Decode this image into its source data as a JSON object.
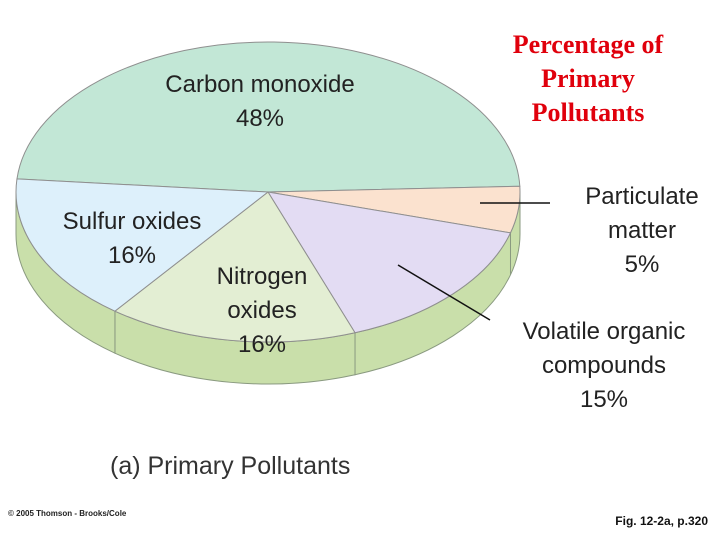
{
  "chart_data": {
    "type": "pie",
    "title": "Percentage of Primary Pollutants",
    "categories": [
      "Carbon monoxide",
      "Particulate matter",
      "Volatile organic compounds",
      "Nitrogen oxides",
      "Sulfur oxides"
    ],
    "values": [
      48,
      5,
      15,
      16,
      16
    ],
    "value_labels": [
      "48%",
      "5%",
      "15%",
      "16%",
      "16%"
    ],
    "colors": [
      "#c2e7d6",
      "#fbe2cf",
      "#e3dcf3",
      "#e3eed3",
      "#ddf0fb"
    ],
    "caption": "(a) Primary Pollutants",
    "credit": "© 2005 Thomson - Brooks/Cole",
    "figure_ref": "Fig. 12-2a, p.320"
  }
}
